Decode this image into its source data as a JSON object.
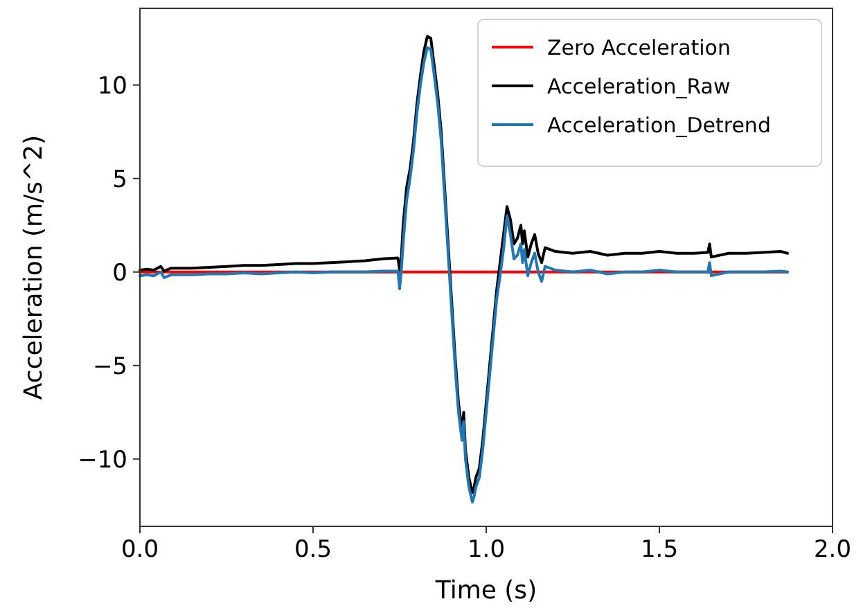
{
  "chart_data": {
    "type": "line",
    "xlabel": "Time (s)",
    "ylabel": "Acceleration (m/s^2)",
    "xlim": [
      0,
      2
    ],
    "ylim": [
      -13.6,
      14.1
    ],
    "xticks": [
      {
        "value": 0,
        "label": "0.0"
      },
      {
        "value": 0.5,
        "label": "0.5"
      },
      {
        "value": 1,
        "label": "1.0"
      },
      {
        "value": 1.5,
        "label": "1.5"
      },
      {
        "value": 2,
        "label": "2.0"
      }
    ],
    "yticks": [
      {
        "value": -10,
        "label": "−10"
      },
      {
        "value": -5,
        "label": "−5"
      },
      0,
      5,
      10
    ],
    "grid": false,
    "legend": "top right",
    "marker": "none",
    "line_style": "solid",
    "series": [
      {
        "name": "Zero Acceleration",
        "color": "#ff0000",
        "x": [
          0,
          1.87
        ],
        "values": [
          0,
          0
        ]
      },
      {
        "name": "Acceleration_Raw",
        "color": "#000000",
        "x": [
          0,
          0.02,
          0.04,
          0.06,
          0.07,
          0.09,
          0.15,
          0.2,
          0.25,
          0.3,
          0.35,
          0.4,
          0.45,
          0.5,
          0.55,
          0.6,
          0.65,
          0.7,
          0.745,
          0.75,
          0.755,
          0.76,
          0.77,
          0.78,
          0.79,
          0.8,
          0.81,
          0.82,
          0.83,
          0.84,
          0.85,
          0.86,
          0.87,
          0.88,
          0.89,
          0.9,
          0.91,
          0.92,
          0.93,
          0.935,
          0.94,
          0.95,
          0.96,
          0.965,
          0.97,
          0.98,
          0.99,
          1.0,
          1.01,
          1.02,
          1.03,
          1.04,
          1.05,
          1.06,
          1.07,
          1.08,
          1.09,
          1.1,
          1.105,
          1.11,
          1.12,
          1.13,
          1.14,
          1.15,
          1.16,
          1.17,
          1.2,
          1.25,
          1.3,
          1.35,
          1.4,
          1.45,
          1.5,
          1.55,
          1.6,
          1.64,
          1.645,
          1.65,
          1.7,
          1.75,
          1.8,
          1.85,
          1.87
        ],
        "values": [
          0.1,
          0.15,
          0.1,
          0.3,
          0.05,
          0.2,
          0.2,
          0.25,
          0.3,
          0.35,
          0.35,
          0.4,
          0.45,
          0.45,
          0.5,
          0.55,
          0.6,
          0.7,
          0.75,
          0.1,
          0.8,
          2.5,
          4.5,
          5.5,
          7,
          9,
          10.5,
          11.8,
          12.6,
          12.5,
          11,
          9.5,
          7.5,
          4.5,
          1.5,
          -1.5,
          -4.5,
          -7,
          -8.5,
          -7.5,
          -9.5,
          -11,
          -11.8,
          -11.5,
          -11,
          -10.5,
          -9,
          -7,
          -5,
          -3,
          -1,
          0.5,
          2,
          3.5,
          2.8,
          1.5,
          1.8,
          2.5,
          1.5,
          2.2,
          0.8,
          1.5,
          2,
          1,
          0.5,
          1.3,
          1.1,
          1,
          1.1,
          0.9,
          1,
          1,
          1.1,
          1,
          1,
          1.05,
          1.5,
          0.8,
          1,
          1,
          1.05,
          1.1,
          1
        ]
      },
      {
        "name": "Acceleration_Detrend",
        "color": "#1f77b4",
        "x": [
          0,
          0.02,
          0.04,
          0.06,
          0.07,
          0.09,
          0.15,
          0.2,
          0.25,
          0.3,
          0.35,
          0.4,
          0.45,
          0.5,
          0.55,
          0.6,
          0.65,
          0.7,
          0.745,
          0.75,
          0.755,
          0.76,
          0.77,
          0.78,
          0.79,
          0.8,
          0.81,
          0.82,
          0.83,
          0.84,
          0.85,
          0.86,
          0.87,
          0.88,
          0.89,
          0.9,
          0.91,
          0.92,
          0.93,
          0.935,
          0.94,
          0.95,
          0.96,
          0.965,
          0.97,
          0.98,
          0.99,
          1.0,
          1.01,
          1.02,
          1.03,
          1.04,
          1.05,
          1.06,
          1.07,
          1.08,
          1.09,
          1.1,
          1.105,
          1.11,
          1.12,
          1.13,
          1.14,
          1.15,
          1.16,
          1.17,
          1.2,
          1.25,
          1.3,
          1.35,
          1.4,
          1.45,
          1.5,
          1.55,
          1.6,
          1.64,
          1.645,
          1.65,
          1.7,
          1.75,
          1.8,
          1.85,
          1.87
        ],
        "values": [
          -0.2,
          -0.15,
          -0.2,
          0,
          -0.3,
          -0.15,
          -0.15,
          -0.1,
          -0.1,
          -0.05,
          -0.1,
          -0.05,
          0,
          -0.05,
          0,
          0,
          0,
          0.05,
          0.05,
          -0.9,
          0.1,
          1.5,
          3.8,
          5,
          6.5,
          8.5,
          10,
          11.2,
          12,
          11.9,
          10.5,
          9,
          7,
          4,
          1,
          -2,
          -5,
          -7.5,
          -9,
          -8,
          -10,
          -11.5,
          -12.3,
          -12,
          -11.5,
          -11,
          -9.5,
          -7.5,
          -5.5,
          -3.5,
          -1.5,
          -0.2,
          1.2,
          3,
          2,
          0.7,
          0.9,
          1.5,
          0.5,
          1.2,
          -0.2,
          0.5,
          1,
          0,
          -0.5,
          0.3,
          0.1,
          0,
          0.1,
          -0.1,
          0,
          0,
          0.1,
          0,
          0,
          0,
          0.5,
          -0.2,
          0,
          0,
          0,
          0.05,
          0
        ]
      }
    ]
  }
}
